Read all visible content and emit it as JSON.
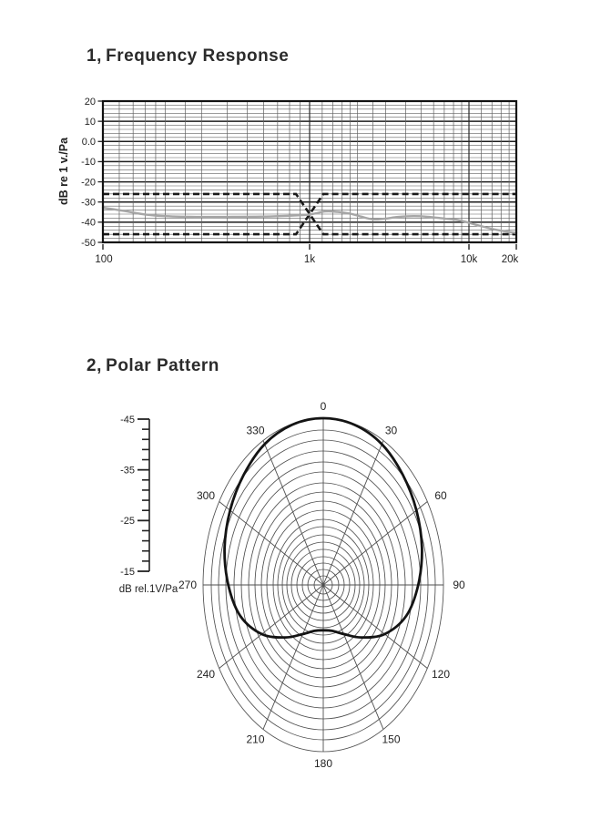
{
  "page": {
    "background": "#ffffff"
  },
  "sections": [
    {
      "title": "1、Frequency Response"
    },
    {
      "title": "2、Polar Pattern"
    }
  ],
  "colors": {
    "ink": "#1a1a1a",
    "grid_minor": "#606060",
    "grid_major": "#1e1e1e",
    "response_curve": "#a6a6a6",
    "polar_grid": "#4f4f4f",
    "polar_curve": "#141414"
  },
  "chart_data": [
    {
      "type": "line",
      "title": "Frequency Response",
      "x_axis": {
        "scale": "log",
        "unit": "Hz",
        "range": [
          100,
          20000
        ],
        "tick_values": [
          100,
          1000,
          10000,
          20000
        ],
        "tick_labels": [
          "100",
          "1k",
          "10k",
          "20k"
        ],
        "minor_gridlines": [
          120,
          140,
          160,
          180,
          200,
          250,
          300,
          400,
          500,
          600,
          700,
          800,
          900,
          1200,
          1400,
          1600,
          1800,
          2000,
          2500,
          3000,
          4000,
          5000,
          6000,
          7000,
          8000,
          9000,
          12000,
          14000,
          16000,
          18000
        ]
      },
      "y_axis": {
        "label": "dB re 1 v./Pa",
        "range": [
          -50,
          20
        ],
        "major_step": 10,
        "minor_step": 2,
        "tick_values": [
          20,
          10,
          0,
          -10,
          -20,
          -30,
          -40,
          -50
        ],
        "tick_labels": [
          "20",
          "10",
          "0.0",
          "-10",
          "-20",
          "-30",
          "-40",
          "-50"
        ]
      },
      "grid": true,
      "series": [
        {
          "name": "response",
          "style": "solid",
          "points": [
            [
              100,
              -32.8
            ],
            [
              130,
              -34.6
            ],
            [
              160,
              -36.2
            ],
            [
              200,
              -37.0
            ],
            [
              300,
              -37.4
            ],
            [
              450,
              -37.3
            ],
            [
              600,
              -37.2
            ],
            [
              800,
              -36.8
            ],
            [
              1000,
              -36.2
            ],
            [
              1250,
              -34.7
            ],
            [
              1500,
              -34.9
            ],
            [
              1800,
              -35.8
            ],
            [
              2100,
              -37.2
            ],
            [
              2500,
              -38.6
            ],
            [
              3000,
              -38.2
            ],
            [
              3600,
              -37.4
            ],
            [
              4500,
              -37.0
            ],
            [
              5500,
              -37.3
            ],
            [
              7000,
              -38.2
            ],
            [
              8500,
              -38.9
            ],
            [
              10000,
              -40.3
            ],
            [
              12000,
              -42.0
            ],
            [
              15000,
              -43.8
            ],
            [
              20000,
              -45.4
            ]
          ]
        },
        {
          "name": "tolerance-upper",
          "style": "dashed",
          "points": [
            [
              100,
              -26
            ],
            [
              860,
              -26
            ],
            [
              1220,
              -46
            ],
            [
              20000,
              -46
            ]
          ]
        },
        {
          "name": "tolerance-lower",
          "style": "dashed",
          "points": [
            [
              100,
              -46
            ],
            [
              860,
              -46
            ],
            [
              1220,
              -26
            ],
            [
              20000,
              -26
            ]
          ]
        }
      ]
    },
    {
      "type": "polar",
      "title": "Polar Pattern",
      "angle_step_deg": 30,
      "angle_labels": [
        "0",
        "30",
        "60",
        "90",
        "120",
        "150",
        "180",
        "210",
        "240",
        "270",
        "300",
        "330"
      ],
      "scale": {
        "label": "dB rel.1V/Pa",
        "tick_labels": [
          "-45",
          "-35",
          "-25",
          "-15"
        ],
        "minor_ticks_between_majors": 4
      },
      "pattern": {
        "angles_deg": [
          0,
          15,
          30,
          45,
          60,
          75,
          90,
          105,
          120,
          135,
          150,
          165,
          180,
          195,
          210,
          225,
          240,
          255,
          270,
          285,
          300,
          315,
          330,
          345
        ],
        "r": [
          1.0,
          0.995,
          0.975,
          0.935,
          0.895,
          0.85,
          0.79,
          0.715,
          0.59,
          0.445,
          0.34,
          0.285,
          0.272,
          0.285,
          0.34,
          0.445,
          0.59,
          0.715,
          0.79,
          0.85,
          0.895,
          0.935,
          0.975,
          0.995
        ]
      }
    }
  ]
}
